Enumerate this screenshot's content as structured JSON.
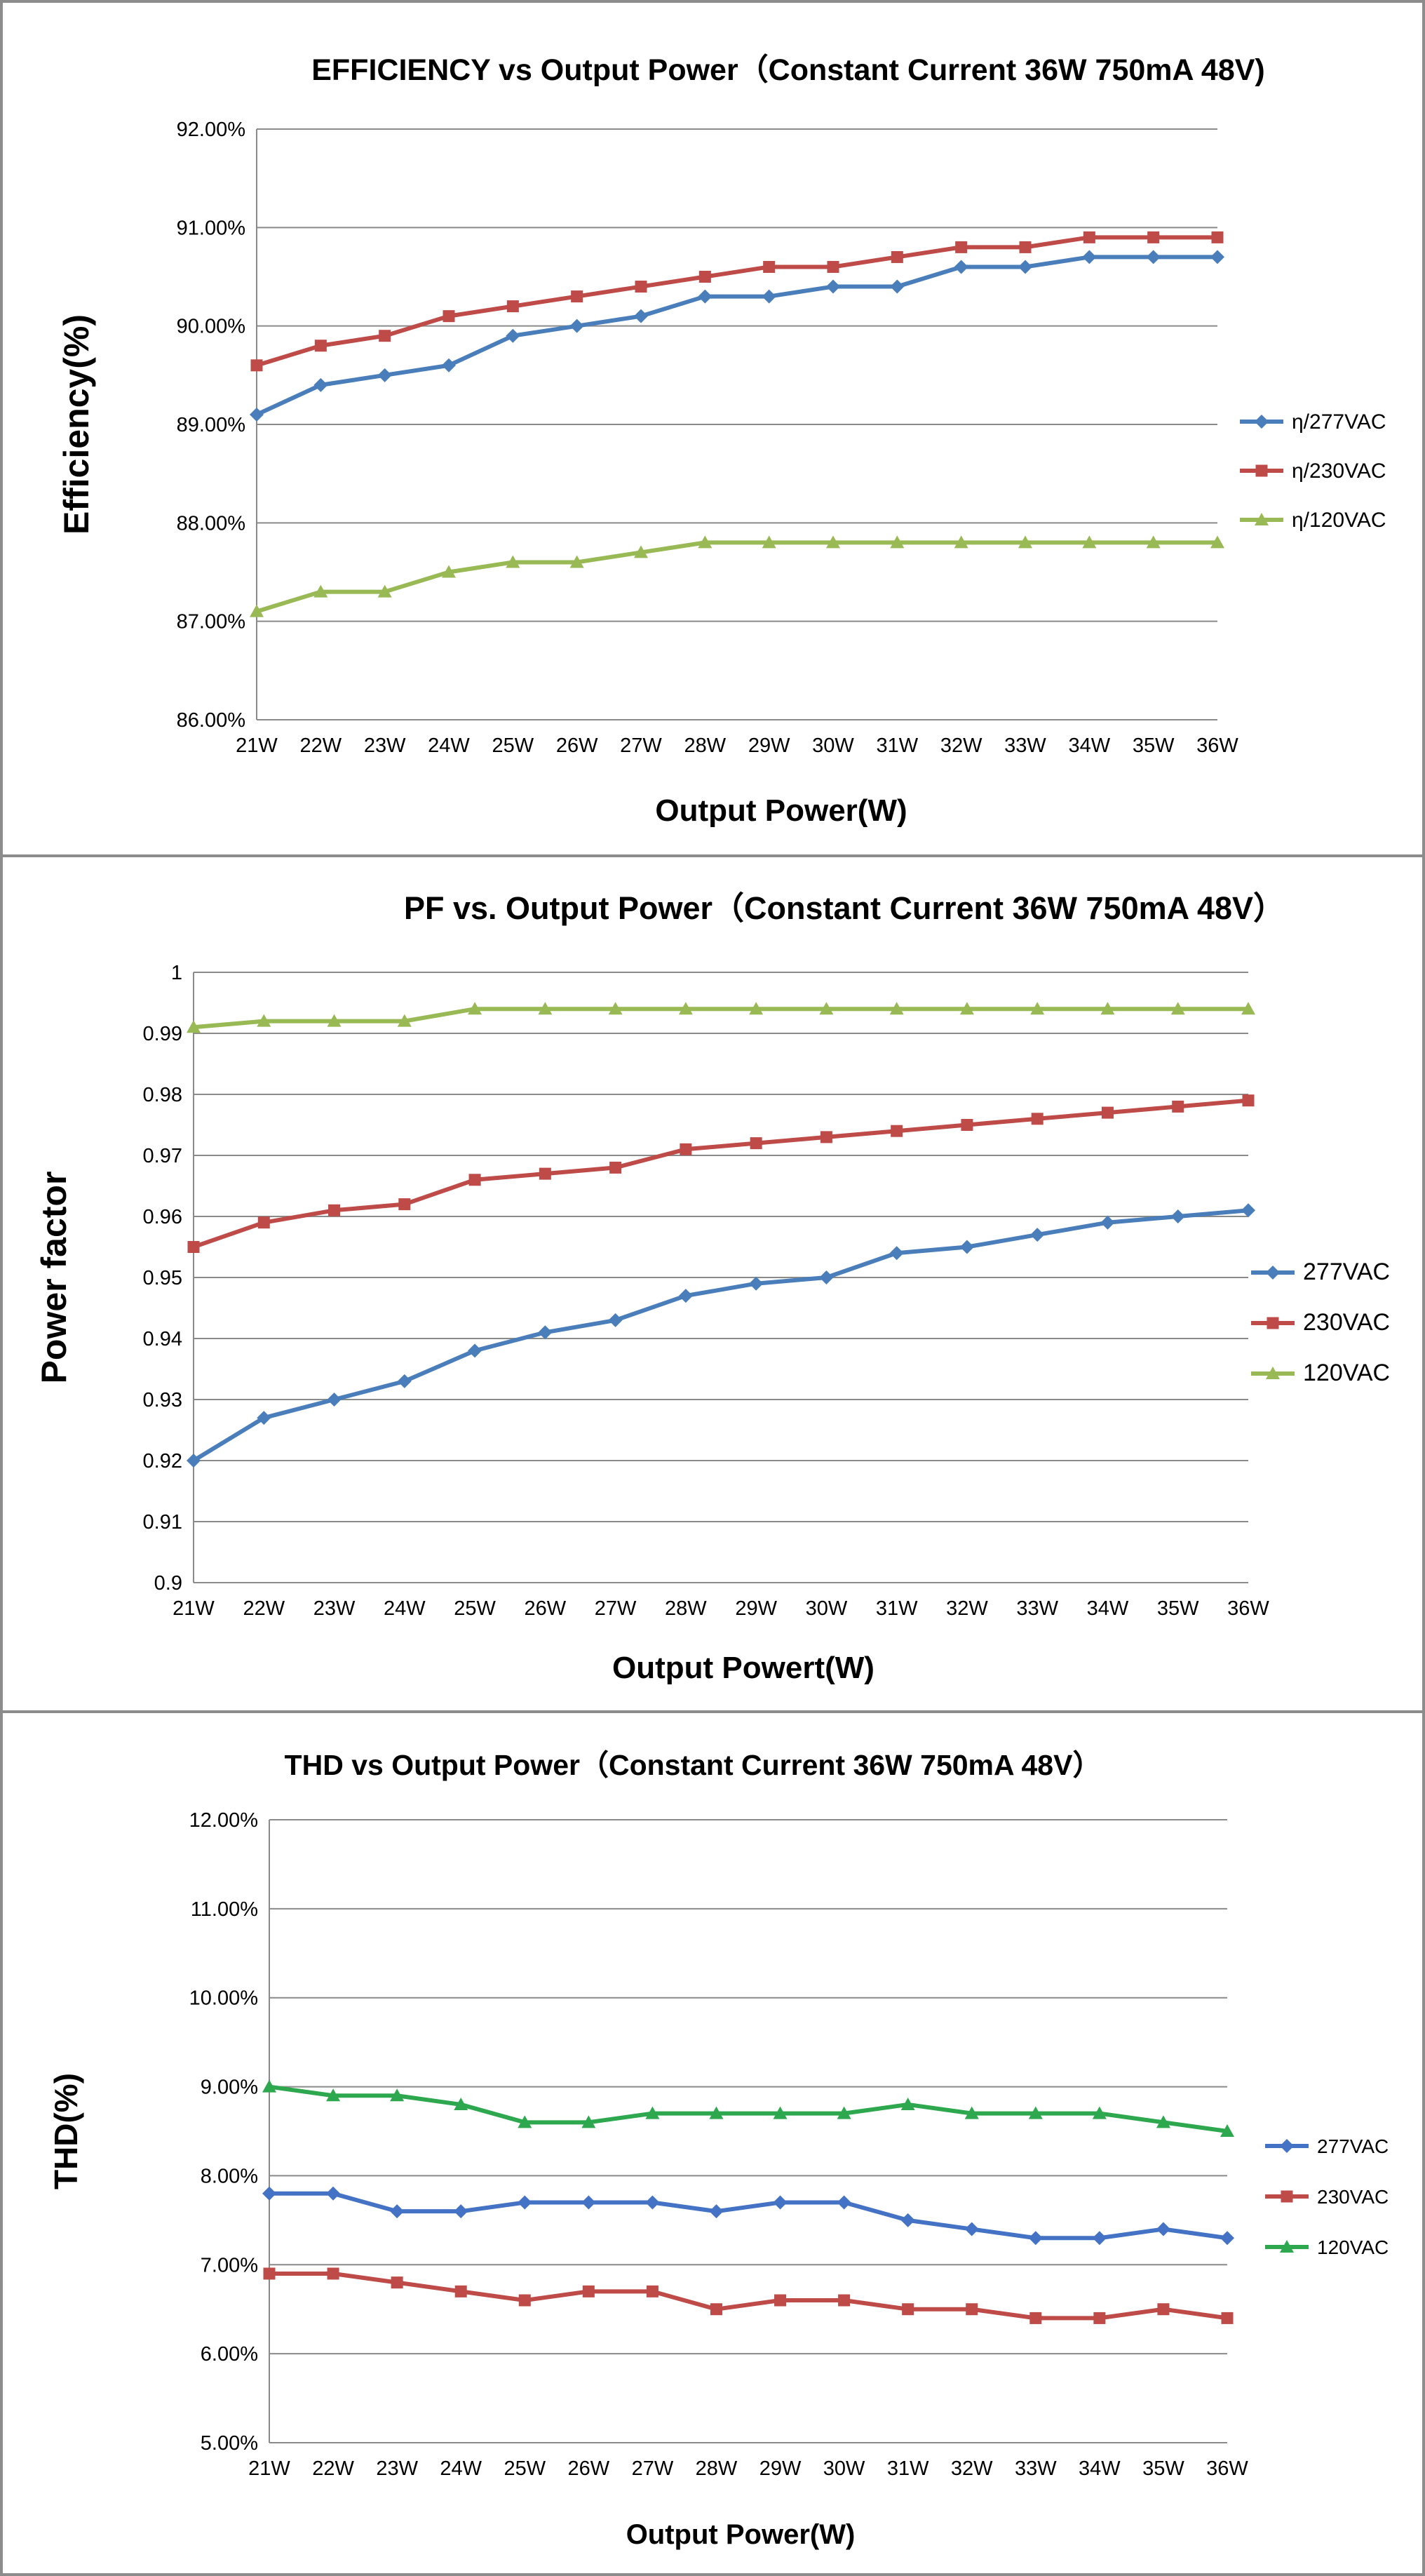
{
  "charts": [
    {
      "title": "EFFICIENCY vs Output Power（Constant Current 36W 750mA 48V)",
      "xlabel": "Output Power(W)",
      "ylabel": "Efficiency(%)",
      "categories": [
        "21W",
        "22W",
        "23W",
        "24W",
        "25W",
        "26W",
        "27W",
        "28W",
        "29W",
        "30W",
        "31W",
        "32W",
        "33W",
        "34W",
        "35W",
        "36W"
      ],
      "ytick_labels": [
        "86.00%",
        "87.00%",
        "88.00%",
        "89.00%",
        "90.00%",
        "91.00%",
        "92.00%"
      ],
      "legend_labels": [
        "η/277VAC",
        "η/230VAC",
        "η/120VAC"
      ]
    },
    {
      "title": "PF vs. Output Power（Constant Current 36W 750mA 48V）",
      "xlabel": "Output Powert(W)",
      "ylabel": "Power factor",
      "categories": [
        "21W",
        "22W",
        "23W",
        "24W",
        "25W",
        "26W",
        "27W",
        "28W",
        "29W",
        "30W",
        "31W",
        "32W",
        "33W",
        "34W",
        "35W",
        "36W"
      ],
      "ytick_labels": [
        "0.9",
        "0.91",
        "0.92",
        "0.93",
        "0.94",
        "0.95",
        "0.96",
        "0.97",
        "0.98",
        "0.99",
        "1"
      ],
      "legend_labels": [
        "277VAC",
        "230VAC",
        "120VAC"
      ]
    },
    {
      "title": "THD vs Output Power（Constant Current 36W  750mA 48V）",
      "xlabel": "Output Power(W)",
      "ylabel": "THD(%)",
      "categories": [
        "21W",
        "22W",
        "23W",
        "24W",
        "25W",
        "26W",
        "27W",
        "28W",
        "29W",
        "30W",
        "31W",
        "32W",
        "33W",
        "34W",
        "35W",
        "36W"
      ],
      "ytick_labels": [
        "5.00%",
        "6.00%",
        "7.00%",
        "8.00%",
        "9.00%",
        "10.00%",
        "11.00%",
        "12.00%"
      ],
      "legend_labels": [
        "277VAC",
        "230VAC",
        "120VAC"
      ]
    }
  ],
  "chart_data": [
    {
      "type": "line",
      "title": "EFFICIENCY vs Output Power（Constant Current 36W 750mA 48V)",
      "xlabel": "Output Power(W)",
      "ylabel": "Efficiency(%)",
      "x": [
        21,
        22,
        23,
        24,
        25,
        26,
        27,
        28,
        29,
        30,
        31,
        32,
        33,
        34,
        35,
        36
      ],
      "ylim": [
        86,
        92
      ],
      "grid": true,
      "legend": "right",
      "series": [
        {
          "name": "η/277VAC",
          "color": "#4a7ebb",
          "marker": "diamond",
          "values": [
            89.1,
            89.4,
            89.5,
            89.6,
            89.9,
            90.0,
            90.1,
            90.3,
            90.3,
            90.4,
            90.4,
            90.6,
            90.6,
            90.7,
            90.7,
            90.7
          ]
        },
        {
          "name": "η/230VAC",
          "color": "#be4b48",
          "marker": "square",
          "values": [
            89.6,
            89.8,
            89.9,
            90.1,
            90.2,
            90.3,
            90.4,
            90.5,
            90.6,
            90.6,
            90.7,
            90.8,
            90.8,
            90.9,
            90.9,
            90.9
          ]
        },
        {
          "name": "η/120VAC",
          "color": "#98b954",
          "marker": "triangle",
          "values": [
            87.1,
            87.3,
            87.3,
            87.5,
            87.6,
            87.6,
            87.7,
            87.8,
            87.8,
            87.8,
            87.8,
            87.8,
            87.8,
            87.8,
            87.8,
            87.8
          ]
        }
      ]
    },
    {
      "type": "line",
      "title": "PF vs. Output Power（Constant Current 36W 750mA 48V）",
      "xlabel": "Output Powert(W)",
      "ylabel": "Power factor",
      "x": [
        21,
        22,
        23,
        24,
        25,
        26,
        27,
        28,
        29,
        30,
        31,
        32,
        33,
        34,
        35,
        36
      ],
      "ylim": [
        0.9,
        1.0
      ],
      "grid": true,
      "legend": "right",
      "series": [
        {
          "name": "277VAC",
          "color": "#4a7ebb",
          "marker": "diamond",
          "values": [
            0.92,
            0.927,
            0.93,
            0.933,
            0.938,
            0.941,
            0.943,
            0.947,
            0.949,
            0.95,
            0.954,
            0.955,
            0.957,
            0.959,
            0.96,
            0.961
          ]
        },
        {
          "name": "230VAC",
          "color": "#be4b48",
          "marker": "square",
          "values": [
            0.955,
            0.959,
            0.961,
            0.962,
            0.966,
            0.967,
            0.968,
            0.971,
            0.972,
            0.973,
            0.974,
            0.975,
            0.976,
            0.977,
            0.978,
            0.979
          ]
        },
        {
          "name": "120VAC",
          "color": "#98b954",
          "marker": "triangle",
          "values": [
            0.991,
            0.992,
            0.992,
            0.992,
            0.994,
            0.994,
            0.994,
            0.994,
            0.994,
            0.994,
            0.994,
            0.994,
            0.994,
            0.994,
            0.994,
            0.994
          ]
        }
      ]
    },
    {
      "type": "line",
      "title": "THD vs Output Power（Constant Current 36W  750mA 48V）",
      "xlabel": "Output Power(W)",
      "ylabel": "THD(%)",
      "x": [
        21,
        22,
        23,
        24,
        25,
        26,
        27,
        28,
        29,
        30,
        31,
        32,
        33,
        34,
        35,
        36
      ],
      "ylim": [
        5,
        12
      ],
      "grid": true,
      "legend": "right",
      "series": [
        {
          "name": "277VAC",
          "color": "#4472c4",
          "marker": "diamond",
          "values": [
            7.8,
            7.8,
            7.6,
            7.6,
            7.7,
            7.7,
            7.7,
            7.6,
            7.7,
            7.7,
            7.5,
            7.4,
            7.3,
            7.3,
            7.4,
            7.3
          ]
        },
        {
          "name": "230VAC",
          "color": "#be4b48",
          "marker": "square",
          "values": [
            6.9,
            6.9,
            6.8,
            6.7,
            6.6,
            6.7,
            6.7,
            6.5,
            6.6,
            6.6,
            6.5,
            6.5,
            6.4,
            6.4,
            6.5,
            6.4
          ]
        },
        {
          "name": "120VAC",
          "color": "#2ea84f",
          "marker": "triangle",
          "values": [
            9.0,
            8.9,
            8.9,
            8.8,
            8.6,
            8.6,
            8.7,
            8.7,
            8.7,
            8.7,
            8.8,
            8.7,
            8.7,
            8.7,
            8.6,
            8.5
          ]
        }
      ]
    }
  ]
}
